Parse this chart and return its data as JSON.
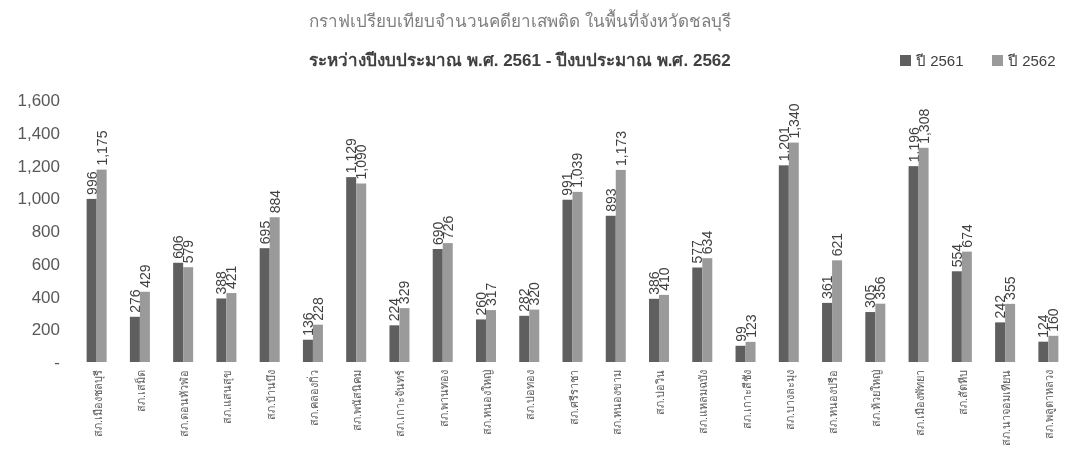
{
  "chart_data": {
    "type": "bar",
    "title": "กราฟเปรียบเทียบจำนวนคดียาเสพติด ในพื้นที่จังหวัดชลบุรี",
    "subtitle": "ระหว่างปีงบประมาณ พ.ศ. 2561 - ปีงบประมาณ พ.ศ. 2562",
    "categories": [
      "สภ.เมืองชลบุรี",
      "สภ.เสม็ด",
      "สภ.ดอนหัวฬ่อ",
      "สภ.แสนสุข",
      "สภ.บ้านบึง",
      "สภ.คลองกิ่ว",
      "สภ.พนัสนิคม",
      "สภ.เกาะจันทร์",
      "สภ.พานทอง",
      "สภ.หนองใหญ่",
      "สภ.บ่อทอง",
      "สภ.ศรีราชา",
      "สภ.หนองขาม",
      "สภ.บ่อวิน",
      "สภ.แหลมฉบัง",
      "สภ.เกาะสีชัง",
      "สภ.บางละมุง",
      "สภ.หนองปรือ",
      "สภ.ห้วยใหญ่",
      "สภ.เมืองพัทยา",
      "สภ.สัตหีบ",
      "สภ.นาจอมเทียน",
      "สภ.พลูตาหลวง"
    ],
    "series": [
      {
        "name": "ปี 2561",
        "color": "#5f5f5f",
        "values": [
          996,
          276,
          606,
          388,
          695,
          136,
          1129,
          224,
          690,
          260,
          282,
          991,
          893,
          386,
          577,
          99,
          1201,
          361,
          305,
          1196,
          554,
          242,
          124
        ],
        "value_labels": [
          "996",
          "276",
          "606",
          "388",
          "695",
          "136",
          "1,129",
          "224",
          "690",
          "260",
          "282",
          "991",
          "893",
          "386",
          "577",
          "99",
          "1,201",
          "361",
          "305",
          "1,196",
          "554",
          "242",
          "124"
        ]
      },
      {
        "name": "ปี 2562",
        "color": "#9a9a9a",
        "values": [
          1175,
          429,
          579,
          421,
          884,
          228,
          1090,
          329,
          726,
          317,
          320,
          1039,
          1173,
          410,
          634,
          123,
          1340,
          621,
          356,
          1308,
          674,
          355,
          160
        ],
        "value_labels": [
          "1,175",
          "429",
          "579",
          "421",
          "884",
          "228",
          "1,090",
          "329",
          "726",
          "317",
          "320",
          "1,039",
          "1,173",
          "410",
          "634",
          "123",
          "1,340",
          "621",
          "356",
          "1,308",
          "674",
          "355",
          "160"
        ]
      }
    ],
    "ylim": [
      0,
      1600
    ],
    "yticks": [
      {
        "value": 0,
        "label": "-"
      },
      {
        "value": 200,
        "label": "200"
      },
      {
        "value": 400,
        "label": "400"
      },
      {
        "value": 600,
        "label": "600"
      },
      {
        "value": 800,
        "label": "800"
      },
      {
        "value": 1000,
        "label": "1,000"
      },
      {
        "value": 1200,
        "label": "1,200"
      },
      {
        "value": 1400,
        "label": "1,400"
      },
      {
        "value": 1600,
        "label": "1,600"
      }
    ],
    "legend": "top right",
    "grid": false
  }
}
